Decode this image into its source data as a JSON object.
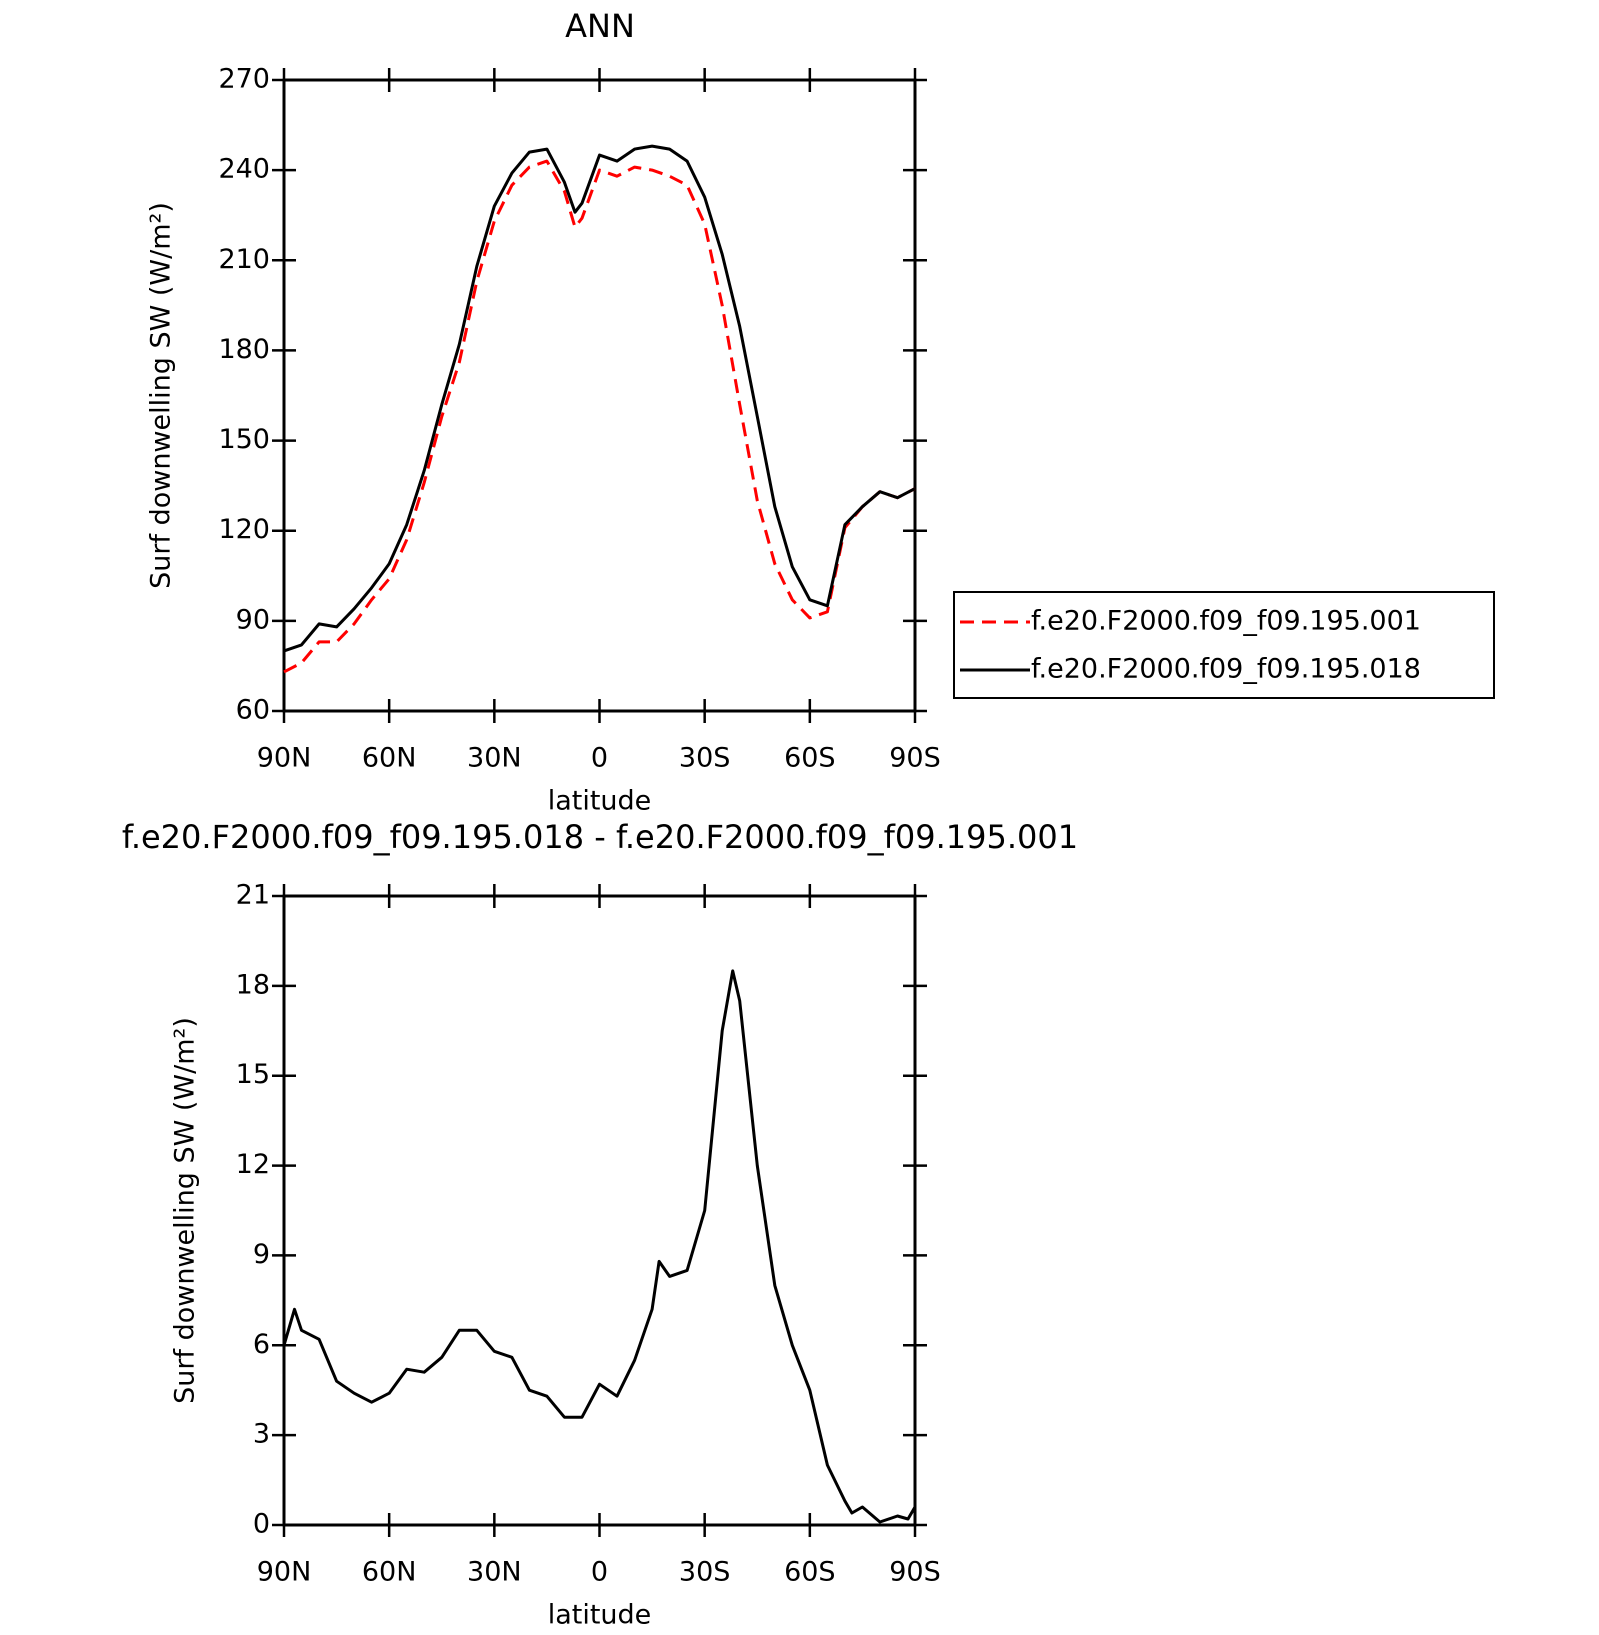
{
  "chart_data": [
    {
      "type": "line",
      "title": "ANN",
      "xlabel": "latitude",
      "ylabel": "Surf downwelling SW (W/m²)",
      "x": [
        90,
        85,
        80,
        75,
        70,
        65,
        60,
        55,
        50,
        45,
        40,
        35,
        30,
        25,
        20,
        15,
        10,
        7,
        5,
        0,
        -5,
        -10,
        -15,
        -20,
        -25,
        -30,
        -35,
        -40,
        -45,
        -50,
        -55,
        -60,
        -65,
        -70,
        -75,
        -80,
        -85,
        -90
      ],
      "series": [
        {
          "name": "f.e20.F2000.f09_f09.195.001",
          "color": "#ff0000",
          "dash": true,
          "values": [
            73,
            76,
            83,
            83,
            89,
            97,
            104,
            117,
            136,
            158,
            176,
            203,
            223,
            235,
            241,
            243,
            233,
            221,
            224,
            240,
            238,
            241,
            240,
            238,
            235,
            222,
            195,
            162,
            130,
            109,
            97,
            91,
            93,
            121,
            128,
            133,
            131,
            134
          ]
        },
        {
          "name": "f.e20.F2000.f09_f09.195.018",
          "color": "#000000",
          "dash": false,
          "values": [
            80,
            82,
            89,
            88,
            94,
            101,
            109,
            122,
            140,
            162,
            182,
            208,
            228,
            239,
            246,
            247,
            236,
            226,
            229,
            245,
            243,
            247,
            248,
            247,
            243,
            231,
            212,
            188,
            158,
            128,
            108,
            97,
            95,
            122,
            128,
            133,
            131,
            134
          ]
        }
      ],
      "xlim": [
        90,
        -90
      ],
      "xticks": [
        {
          "value": 90,
          "label": "90N"
        },
        {
          "value": 60,
          "label": "60N"
        },
        {
          "value": 30,
          "label": "30N"
        },
        0,
        {
          "value": -30,
          "label": "30S"
        },
        {
          "value": -60,
          "label": "60S"
        },
        {
          "value": -90,
          "label": "90S"
        }
      ],
      "ylim": [
        60,
        270
      ],
      "yticks": [
        60,
        90,
        120,
        150,
        180,
        210,
        240,
        270
      ],
      "legend": true
    },
    {
      "type": "line",
      "title": "f.e20.F2000.f09_f09.195.018 - f.e20.F2000.f09_f09.195.001",
      "xlabel": "latitude",
      "ylabel": "Surf downwelling SW (W/m²)",
      "x": [
        90,
        87,
        85,
        80,
        75,
        70,
        65,
        60,
        55,
        50,
        45,
        40,
        35,
        30,
        25,
        20,
        15,
        10,
        5,
        0,
        -5,
        -10,
        -15,
        -17,
        -20,
        -25,
        -30,
        -35,
        -38,
        -40,
        -45,
        -50,
        -55,
        -60,
        -65,
        -70,
        -72,
        -75,
        -80,
        -85,
        -88,
        -90
      ],
      "series": [
        {
          "color": "#000000",
          "dash": false,
          "values": [
            6.0,
            7.2,
            6.5,
            6.2,
            4.8,
            4.4,
            4.1,
            4.4,
            5.2,
            5.1,
            5.6,
            6.5,
            6.5,
            5.8,
            5.6,
            4.5,
            4.3,
            3.6,
            3.6,
            4.7,
            4.3,
            5.5,
            7.2,
            8.8,
            8.3,
            8.5,
            10.5,
            16.5,
            18.5,
            17.5,
            12,
            8,
            6,
            4.5,
            2,
            0.8,
            0.4,
            0.6,
            0.1,
            0.3,
            0.2,
            0.6
          ]
        }
      ],
      "xlim": [
        90,
        -90
      ],
      "xticks": [
        {
          "value": 90,
          "label": "90N"
        },
        {
          "value": 60,
          "label": "60N"
        },
        {
          "value": 30,
          "label": "30N"
        },
        0,
        {
          "value": -30,
          "label": "30S"
        },
        {
          "value": -60,
          "label": "60S"
        },
        {
          "value": -90,
          "label": "90S"
        }
      ],
      "ylim": [
        0,
        21
      ],
      "yticks": [
        0,
        3,
        6,
        9,
        12,
        15,
        18,
        21
      ],
      "legend": false
    }
  ]
}
